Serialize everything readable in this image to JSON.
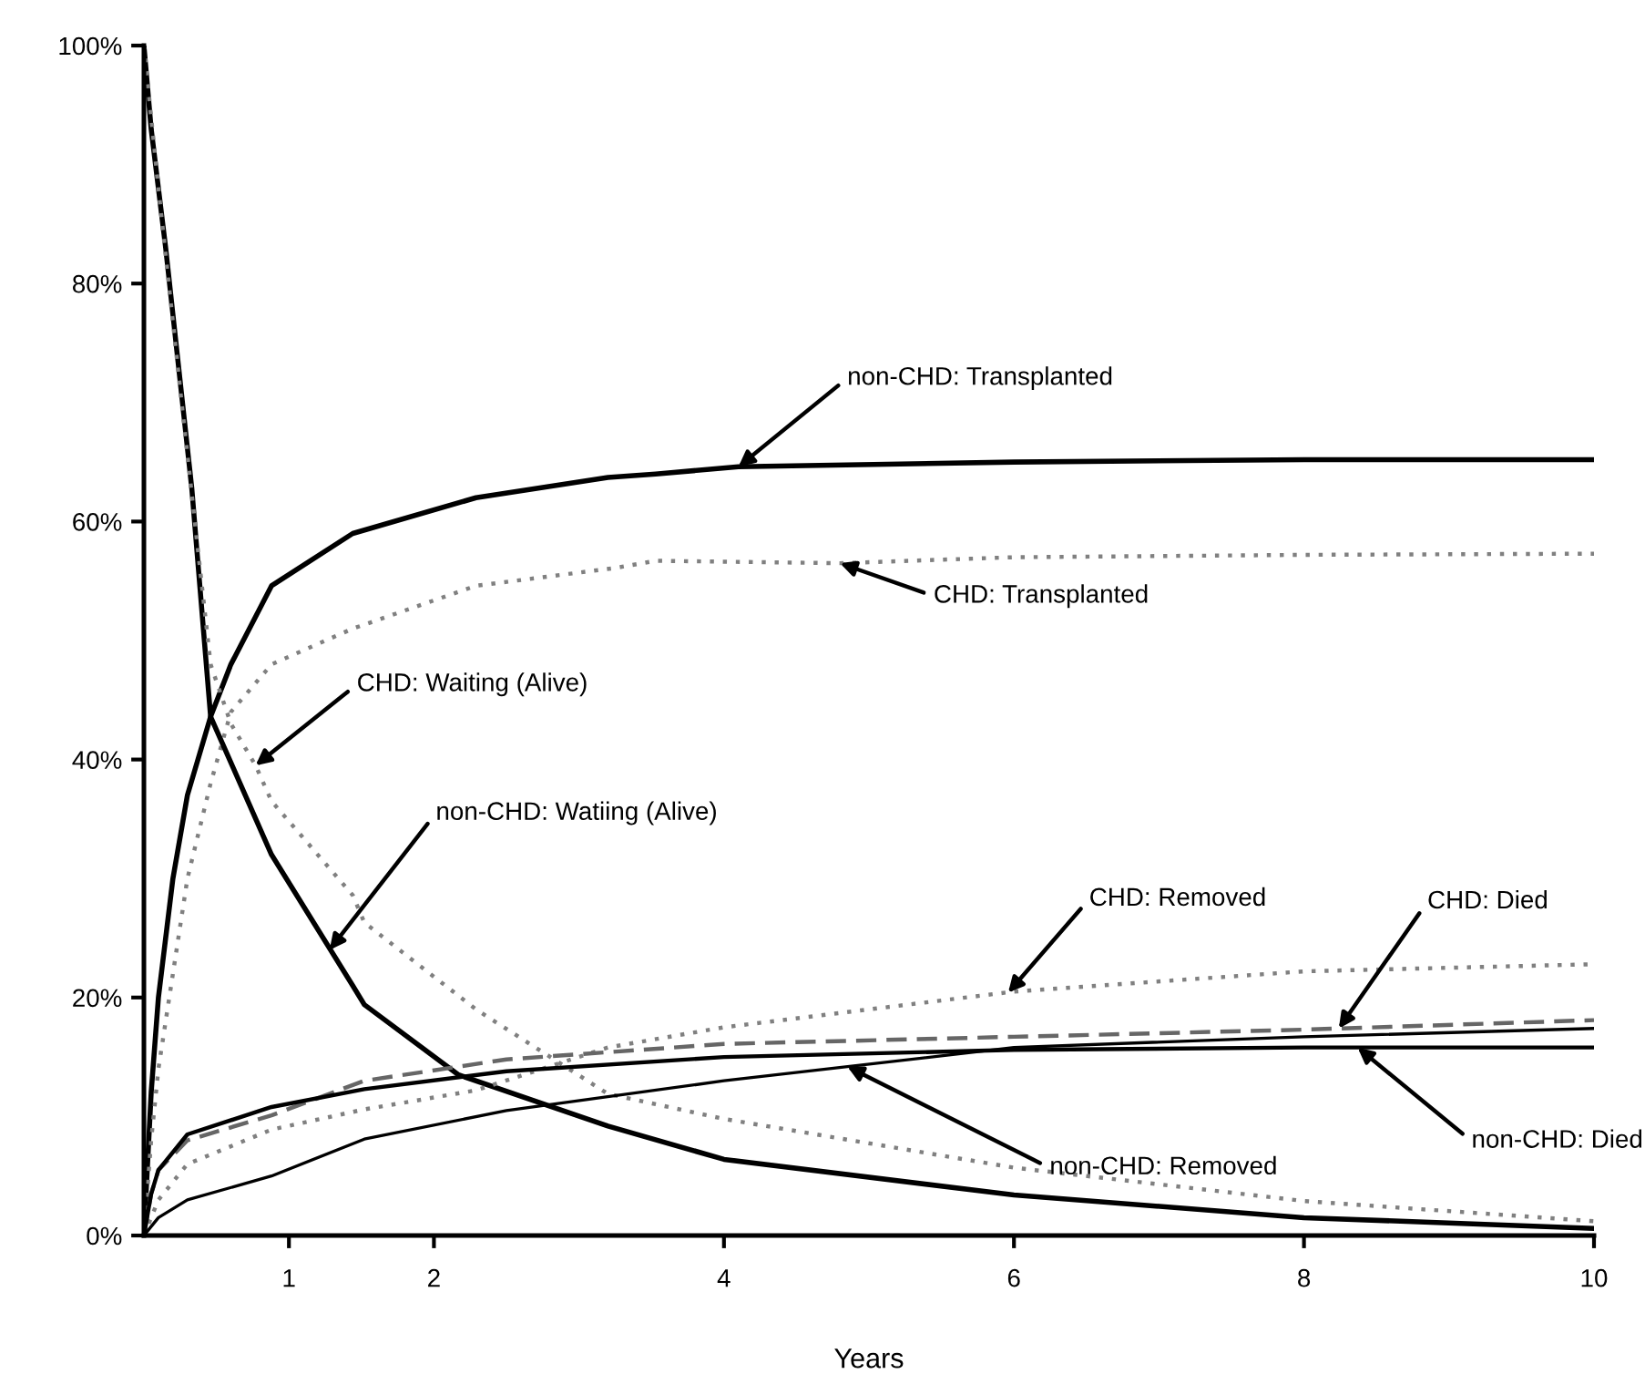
{
  "chart_data": {
    "type": "line",
    "xlabel": "Years",
    "xlim": [
      0,
      10
    ],
    "xticks": [
      1,
      2,
      4,
      6,
      8,
      10
    ],
    "ylim": [
      0,
      100
    ],
    "yticks": [
      {
        "value": 0,
        "label": "0%"
      },
      {
        "value": 20,
        "label": "20%"
      },
      {
        "value": 40,
        "label": "40%"
      },
      {
        "value": 60,
        "label": "60%"
      },
      {
        "value": 80,
        "label": "80%"
      },
      {
        "value": 100,
        "label": "100%"
      }
    ],
    "grid": false,
    "legend": false,
    "marker": "none",
    "series": [
      {
        "color": "#000000",
        "line_style": "solid",
        "x": [
          0,
          0.05,
          0.1,
          0.2,
          0.3,
          0.46,
          0.6,
          0.88,
          1.44,
          2.29,
          3.2,
          3.53,
          4.1,
          6,
          8,
          10
        ],
        "values": [
          0,
          12,
          20,
          30,
          37,
          43.6,
          48,
          54.6,
          59,
          62,
          63.7,
          64,
          64.6,
          65,
          65.2,
          65.2
        ]
      },
      {
        "color": "#808080",
        "line_style": "dotted",
        "x": [
          0,
          0.05,
          0.1,
          0.2,
          0.3,
          0.46,
          0.6,
          0.88,
          1.44,
          2.29,
          3.25,
          3.53,
          4.8,
          6,
          8,
          10
        ],
        "values": [
          0,
          8,
          14,
          22,
          30,
          38,
          44,
          48,
          51,
          54.6,
          56.1,
          56.7,
          56.5,
          57,
          57.2,
          57.3
        ]
      },
      {
        "color": "#000000",
        "line_style": "solid",
        "x": [
          0,
          0.05,
          0.15,
          0.33,
          0.46,
          0.88,
          1.44,
          1.52,
          2.17,
          3.2,
          4,
          6,
          8,
          10
        ],
        "values": [
          100,
          93,
          83,
          62.8,
          43.6,
          32,
          21,
          19.4,
          13.5,
          9.2,
          6.4,
          3.4,
          1.5,
          0.6
        ]
      },
      {
        "color": "#808080",
        "line_style": "dotted",
        "x": [
          0,
          0.1,
          0.26,
          0.46,
          0.6,
          0.77,
          0.88,
          1.44,
          1.52,
          2.29,
          3.2,
          4,
          6,
          8,
          10
        ],
        "values": [
          100,
          88,
          70,
          48,
          43,
          39.5,
          36.5,
          28.6,
          26.3,
          19,
          11.9,
          9.8,
          5.7,
          2.9,
          1.2
        ]
      },
      {
        "color": "#808080",
        "line_style": "dotted",
        "x": [
          0,
          0.1,
          0.3,
          0.88,
          1.52,
          2.29,
          3.2,
          4,
          6,
          8,
          10
        ],
        "values": [
          0,
          3,
          6,
          8.9,
          10.6,
          12.2,
          15.8,
          17.5,
          20.5,
          22.2,
          22.8
        ]
      },
      {
        "color": "#666666",
        "line_style": "dashed",
        "x": [
          0,
          0.05,
          0.1,
          0.3,
          0.88,
          1.52,
          2.5,
          4,
          6,
          8,
          10
        ],
        "values": [
          0,
          3.5,
          5.5,
          8,
          10.1,
          13,
          14.8,
          16.1,
          16.7,
          17.3,
          18.1
        ]
      },
      {
        "color": "#000000",
        "line_style": "solid",
        "x": [
          0,
          0.1,
          0.3,
          0.88,
          1.52,
          2.5,
          4,
          6,
          8,
          10
        ],
        "values": [
          0,
          1.5,
          3,
          5,
          8.1,
          10.5,
          13,
          15.8,
          16.7,
          17.4
        ]
      },
      {
        "color": "#000000",
        "line_style": "solid",
        "x": [
          0,
          0.05,
          0.1,
          0.3,
          0.88,
          1.52,
          2.5,
          4,
          6,
          8,
          10
        ],
        "values": [
          0,
          3.5,
          5.5,
          8.5,
          10.8,
          12.3,
          13.8,
          15,
          15.6,
          15.8,
          15.8
        ]
      }
    ],
    "annotations": [
      {
        "text": "non-CHD: Transplanted",
        "x": 4.1,
        "y": 64.6
      },
      {
        "text": "CHD: Transplanted",
        "x": 4.8,
        "y": 56.5
      },
      {
        "text": "CHD: Waiting (Alive)",
        "x": 0.77,
        "y": 39.5
      },
      {
        "text": "non-CHD: Watiing (Alive)",
        "x": 1.28,
        "y": 24
      },
      {
        "text": "CHD: Removed",
        "x": 5.96,
        "y": 20.4
      },
      {
        "text": "CHD: Died",
        "x": 8.24,
        "y": 17.4
      },
      {
        "text": "non-CHD: Removed",
        "x": 4.85,
        "y": 14.2
      },
      {
        "text": "non-CHD: Died",
        "x": 8.37,
        "y": 15.8
      }
    ]
  }
}
